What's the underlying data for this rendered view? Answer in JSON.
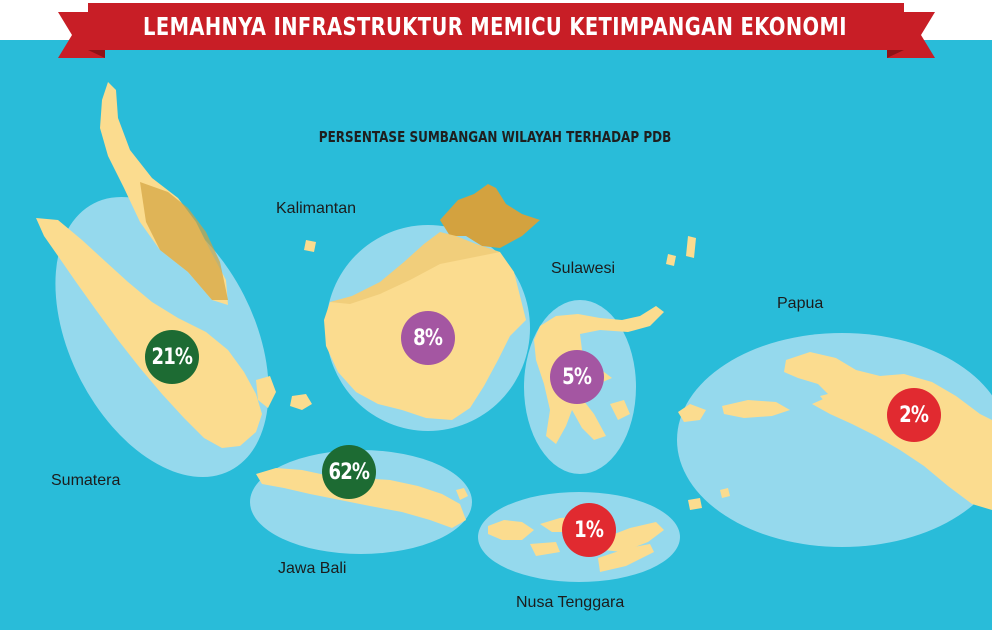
{
  "title": "LEMAHNYA INFRASTRUKTUR MEMICU KETIMPANGAN EKONOMI",
  "subtitle": "PERSENTASE SUMBANGAN WILAYAH TERHADAP PDB",
  "colors": {
    "sea": "#29bcd9",
    "land": "#fbdc8f",
    "neighbor_land": "#d3a23f",
    "highlight_ellipse": "#b9e3f3",
    "banner": "#c81e26",
    "banner_dark": "#8e1216",
    "badge_green": "#1d6b33",
    "badge_purple": "#a456a2",
    "badge_red": "#e12a30"
  },
  "regions": [
    {
      "name": "Sumatera",
      "value": "21%",
      "color": "#1d6b33"
    },
    {
      "name": "Jawa Bali",
      "value": "62%",
      "color": "#1d6b33"
    },
    {
      "name": "Kalimantan",
      "value": "8%",
      "color": "#a456a2"
    },
    {
      "name": "Sulawesi",
      "value": "5%",
      "color": "#a456a2"
    },
    {
      "name": "Nusa Tenggara",
      "value": "1%",
      "color": "#e12a30"
    },
    {
      "name": "Papua",
      "value": "2%",
      "color": "#e12a30"
    }
  ]
}
